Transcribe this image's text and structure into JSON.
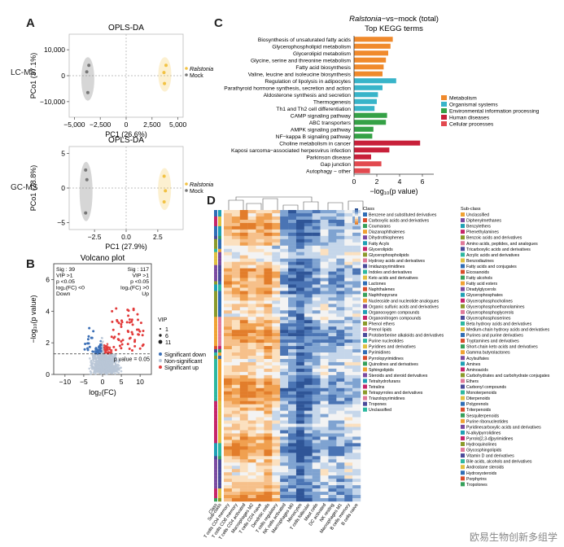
{
  "panel_labels": {
    "a": "A",
    "b": "B",
    "c": "C",
    "d": "D"
  },
  "row_labels": {
    "lcms": "LC-MS",
    "gcms": "GC-MS"
  },
  "watermark": "欧易生物创新多组学",
  "colors": {
    "ralstonia": "#f2c243",
    "mock": "#777777",
    "metabolism": "#f08a2c",
    "organismal": "#38b4c9",
    "environmental": "#35a146",
    "human_disease": "#c8203a",
    "cellular": "#e2494f"
  },
  "chart_data": [
    {
      "id": "A1",
      "type": "scatter",
      "title": "OPLS-DA",
      "xlabel": "PC1 (26.6%)",
      "ylabel": "PCo1 (37.1%)",
      "xlim": [
        -5500,
        5500
      ],
      "ylim": [
        -16000,
        16000
      ],
      "xticks": [
        -5000,
        -2500,
        0,
        2500,
        5000
      ],
      "xticklabels": [
        "−5,000",
        "−2,500",
        "0",
        "2,500",
        "5,000"
      ],
      "yticks": [
        10000,
        0,
        -10000
      ],
      "yticklabels": [
        "10,000",
        "0",
        "−10,000"
      ],
      "legend": [
        "Ralstonia",
        "Mock"
      ],
      "series": [
        {
          "name": "Ralstonia",
          "x": [
            3650,
            3850,
            3700
          ],
          "y": [
            1200,
            4000,
            -3000
          ]
        },
        {
          "name": "Mock",
          "x": [
            -3800,
            -3600,
            -3700
          ],
          "y": [
            1500,
            4000,
            -6500
          ]
        }
      ]
    },
    {
      "id": "A2",
      "type": "scatter",
      "title": "OPLS-DA",
      "xlabel": "PC1 (27.9%)",
      "ylabel": "PCo1 (28.8%)",
      "xlim": [
        -4.5,
        4.5
      ],
      "ylim": [
        -6,
        6
      ],
      "xticks": [
        -2.5,
        0,
        2.5
      ],
      "xticklabels": [
        "−2.5",
        "0.0",
        "2.5"
      ],
      "yticks": [
        5,
        0,
        -5
      ],
      "yticklabels": [
        "5",
        "0",
        "−5"
      ],
      "legend": [
        "Ralstonia",
        "Mock"
      ],
      "series": [
        {
          "name": "Ralstonia",
          "x": [
            3.0,
            3.1,
            3.0
          ],
          "y": [
            1.7,
            -0.4,
            -2.0
          ]
        },
        {
          "name": "Mock",
          "x": [
            -3.2,
            -3.1,
            -3.2
          ],
          "y": [
            2.6,
            1.2,
            -3.6
          ]
        }
      ]
    },
    {
      "id": "B",
      "type": "scatter",
      "title": "Volcano plot",
      "xlabel": "log₂(FC)",
      "ylabel": "−log₁₀(p value)",
      "xlim": [
        -13,
        13
      ],
      "ylim": [
        0,
        7
      ],
      "xticks": [
        -10,
        -5,
        0,
        5,
        10
      ],
      "yticks": [
        0,
        2,
        4,
        6
      ],
      "threshold_label": "p value = 0.05",
      "annot_down": [
        "Sig : 39",
        "VIP >1",
        "p <0.05",
        "log₂(FC) <0",
        "Down"
      ],
      "annot_up": [
        "Sig : 117",
        "VIP >1",
        "p <0.05",
        "log₂(FC) >0",
        "Up"
      ],
      "legend_vip_title": "VIP",
      "legend_vip": [
        "1",
        "6",
        "11"
      ],
      "legend_sig": [
        "Significant down",
        "Non-significant",
        "Significant up"
      ]
    },
    {
      "id": "C",
      "type": "bar",
      "orientation": "horizontal",
      "title_italic": "Ralstonia",
      "title_rest": "−vs−mock (total)",
      "subtitle": "Top KEGG terms",
      "xlabel": "−log₁₀(p value)",
      "xlim": [
        0,
        7
      ],
      "xticks": [
        0,
        2,
        4,
        6
      ],
      "categories": [
        "Biosynthesis of unsaturated fatty acids",
        "Glycerophospholipid metabolism",
        "Glycerolipid metabolism",
        "Glycine, serine and threonine metabolism",
        "Fatty acid biosynthesis",
        "Valine, leucine and isoleucine biosynthesis",
        "Regulation of lipolysis in adipocytes",
        "Parathyroid hormone synthesis, secretion and action",
        "Aldosterone synthesis and secretion",
        "Thermogenesis",
        "Th1 and Th2 cell differentiation",
        "CAMP signaling pathway",
        "ABC transporters",
        "AMPK signaling pathway",
        "NF−kappa B signaling pathway",
        "Choline metabolism in cancer",
        "Kaposi sarcoma−associated herpesvirus infection",
        "Parkinson disease",
        "Gap junction",
        "Autophagy − other"
      ],
      "values": [
        3.4,
        3.2,
        3.0,
        2.8,
        2.6,
        2.5,
        3.7,
        2.5,
        2.1,
        2.0,
        1.8,
        2.9,
        2.8,
        1.7,
        1.6,
        5.8,
        3.1,
        1.5,
        2.4,
        1.4
      ],
      "groups": [
        "metabolism",
        "metabolism",
        "metabolism",
        "metabolism",
        "metabolism",
        "metabolism",
        "organismal",
        "organismal",
        "organismal",
        "organismal",
        "organismal",
        "environmental",
        "environmental",
        "environmental",
        "environmental",
        "human_disease",
        "human_disease",
        "human_disease",
        "cellular",
        "cellular"
      ],
      "legend": [
        {
          "key": "metabolism",
          "label": "Metabolism"
        },
        {
          "key": "organismal",
          "label": "Organismal systems"
        },
        {
          "key": "environmental",
          "label": "Environmental information processing"
        },
        {
          "key": "human_disease",
          "label": "Human diseases"
        },
        {
          "key": "cellular",
          "label": "Cellular processes"
        }
      ]
    },
    {
      "id": "D",
      "type": "heatmap",
      "legend_class_title": "Class",
      "legend_class": [
        "Benzene and substituted derivatives",
        "Carboxylic acids and derivatives",
        "Coumarans",
        "Diazanaphthalenes",
        "Dihydrothiophenes",
        "Fatty Acyls",
        "Glycerolipids",
        "Glycerophospholipids",
        "Hydroxy acids and derivatives",
        "Imidazopyrimidines",
        "Indoles and derivatives",
        "Keto acids and derivatives",
        "Lactones",
        "Naphthalenes",
        "Naphthopyrans",
        "Nucleoside and nucleotide analogues",
        "Organic sulfuric acids and derivatives",
        "Organooxygen compounds",
        "Organonitrogen compounds",
        "Phenol ethers",
        "Prenol lipids",
        "Protoberberine alkaloids and derivatives",
        "Purine nucleotides",
        "Pyridines and derivatives",
        "Pyrimidines",
        "Pyrrolopyrimidines",
        "Quinolines and derivatives",
        "Sphingolipids",
        "Steroids and steroid derivatives",
        "Tetrahydrofurans",
        "Tetralins",
        "Tetrapyrroles and derivatives",
        "Triazolopyrimidines",
        "Tropones",
        "Unclassified"
      ],
      "legend_subclass_title": "Sub-class",
      "legend_subclass": [
        "Unclassified",
        "Diphenylmethanes",
        "Benzylethers",
        "Phenethylamines",
        "Benzoic acids and derivatives",
        "Amino acids, peptides, and analogues",
        "Tricarboxylic acids and derivatives",
        "Acrylic acids and derivatives",
        "Benzodiazines",
        "Fatty acids and conjugates",
        "Eicosanoids",
        "Fatty alcohols",
        "Fatty acid esters",
        "Diradylglycerols",
        "Glycerophosphates",
        "Glycerophosphocholines",
        "Glycerophosphoethanolamines",
        "Glycerophosphoglycerols",
        "Glycerophosphoserines",
        "Beta hydroxy acids and derivatives",
        "Medium-chain hydroxy acids and derivatives",
        "Purines and purine derivatives",
        "Tryptamines and derivatives",
        "Short-chain keto acids and derivatives",
        "Gamma butyrolactones",
        "Acylsulfates",
        "Amines",
        "Aminoacids",
        "Carbohydrates and carbohydrate conjugates",
        "Ethers",
        "Carbonyl compounds",
        "Monoterpenoids",
        "Diterpenoids",
        "Polyprenols",
        "Triterpenoids",
        "Sesquiterpenoids",
        "Purine ribonucleotides",
        "Pyridinecarboxylic acids and derivatives",
        "N-alkylpyrrolidines",
        "Pyrrolo[2,3-d]pyrimidines",
        "Hydroquinolines",
        "Glycosphingolipids",
        "Vitamin D and derivatives",
        "Bile acids, alcohols and derivatives",
        "Androstane steroids",
        "Hydroxysteroids",
        "Porphyrins",
        "Tropolones"
      ],
      "column_labels": [
        "Class",
        "Sub-class",
        "T cells CD4 memory",
        "T cells CD8 memory",
        "T cells CD4 activated",
        "Macrophages M2",
        "T cells CD4 naive",
        "Dendritic cells",
        "T cells regulatory",
        "NK cells activated",
        "Macrophages M0",
        "Monocytes",
        "T cells follicular",
        "Mast cells",
        "DC activated",
        "NK resting",
        "Macrophages M1",
        "B cells memory",
        "B cells naive"
      ]
    }
  ]
}
